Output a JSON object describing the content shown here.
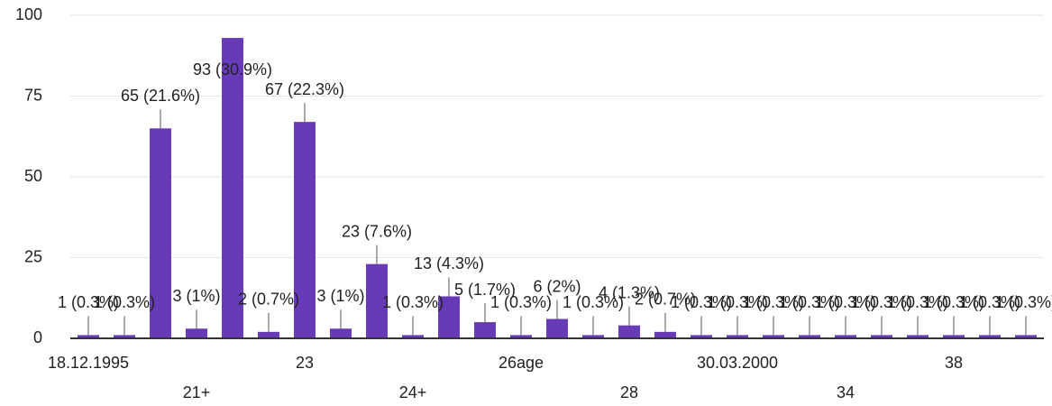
{
  "chart_data": {
    "type": "bar",
    "categories": [
      "18.12.1995",
      null,
      null,
      "21+",
      null,
      null,
      "23",
      null,
      null,
      "24+",
      null,
      null,
      "26age",
      null,
      null,
      "28",
      null,
      null,
      "30.03.2000",
      null,
      null,
      "34",
      null,
      null,
      "38",
      null,
      null
    ],
    "values": [
      1,
      1,
      65,
      3,
      93,
      2,
      67,
      3,
      23,
      1,
      13,
      5,
      1,
      6,
      1,
      4,
      2,
      1,
      1,
      1,
      1,
      1,
      1,
      1,
      1,
      1,
      1
    ],
    "value_labels": [
      "1 (0.3%)",
      "1 (0.3%)",
      "65 (21.6%)",
      "3 (1%)",
      "93 (30.9%)",
      "2 (0.7%)",
      "67 (22.3%)",
      "3 (1%)",
      "23 (7.6%)",
      "1 (0.3%)",
      "13 (4.3%)",
      "5 (1.7%)",
      "1 (0.3%)",
      "6 (2%)",
      "1 (0.3%)",
      "4 (1.3%)",
      "2 (0.7%)",
      "1 (0.3%)",
      "1 (0.3%)",
      "1 (0.3%)",
      "1 (0.3%)",
      "1 (0.3%)",
      "1 (0.3%)",
      "1 (0.3%)",
      "1 (0.3%)",
      "1 (0.3%)",
      "1 (0.3%)"
    ],
    "color": "#673ab7",
    "ylim": [
      0,
      100
    ],
    "yticks": [
      0,
      25,
      50,
      75,
      100
    ],
    "grid": true
  }
}
